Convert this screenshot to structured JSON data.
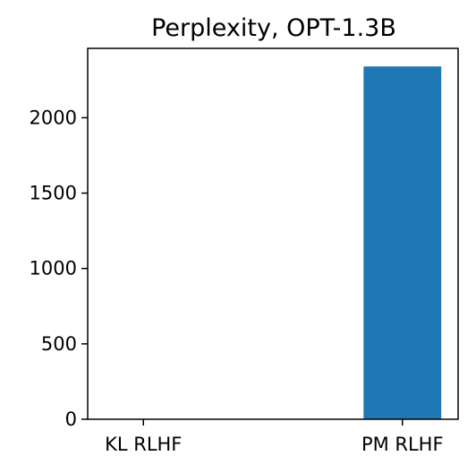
{
  "chart_data": {
    "type": "bar",
    "title": "Perplexity, OPT-1.3B",
    "xlabel": "",
    "ylabel": "",
    "categories": [
      "KL RLHF",
      "PM RLHF"
    ],
    "values": [
      0,
      2340
    ],
    "ylim": [
      0,
      2460
    ],
    "yticks": [
      0,
      500,
      1000,
      1500,
      2000
    ],
    "grid": false,
    "colors": {
      "bar": "#1f77b4",
      "axis": "#000000",
      "background": "#ffffff"
    }
  }
}
